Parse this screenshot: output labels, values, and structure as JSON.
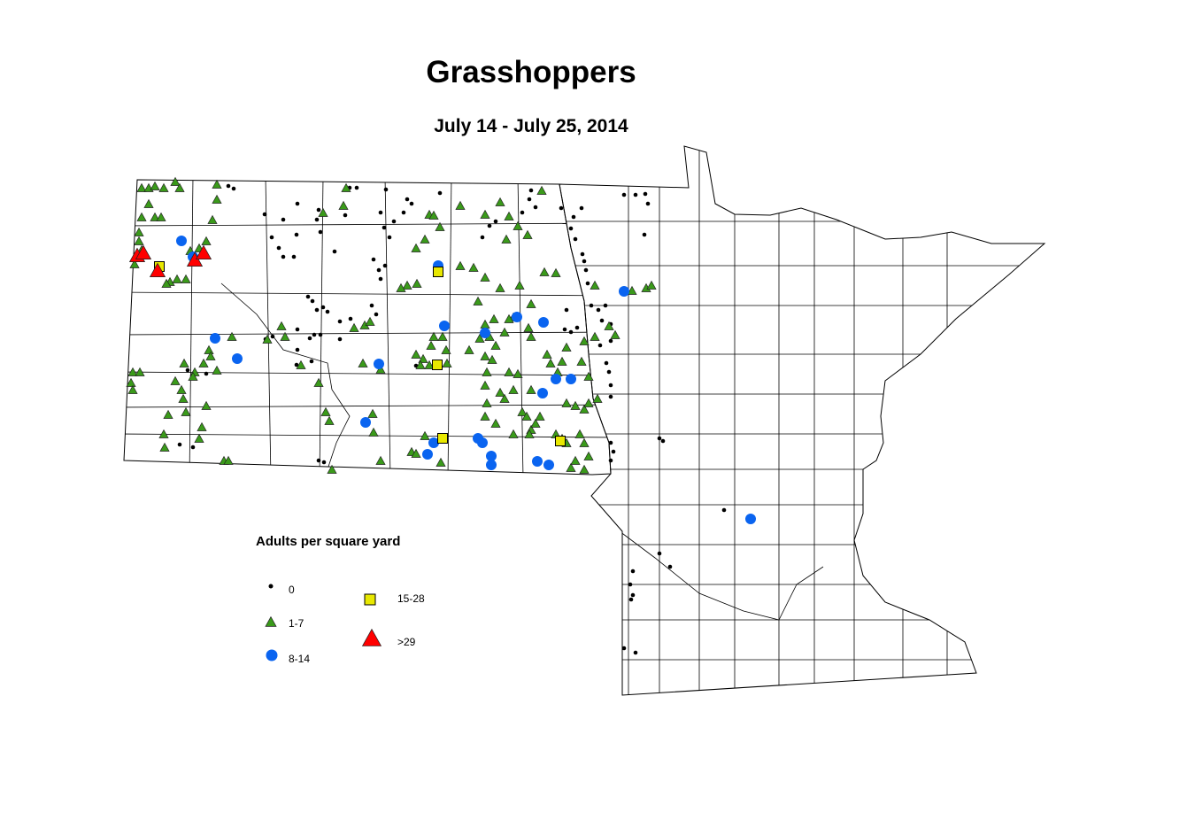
{
  "title": "Grasshoppers",
  "subtitle": "July 14 - July 25, 2014",
  "legend": {
    "title": "Adults per square yard",
    "items": [
      {
        "label": "0",
        "shape": "dot",
        "color": "#000000"
      },
      {
        "label": "1-7",
        "shape": "triangle",
        "color": "#3a9a1a"
      },
      {
        "label": "8-14",
        "shape": "circle",
        "color": "#0a64f0"
      },
      {
        "label": "15-28",
        "shape": "square",
        "color": "#e8e800"
      },
      {
        "label": ">29",
        "shape": "triangle",
        "color": "#ff0000"
      }
    ]
  }
}
